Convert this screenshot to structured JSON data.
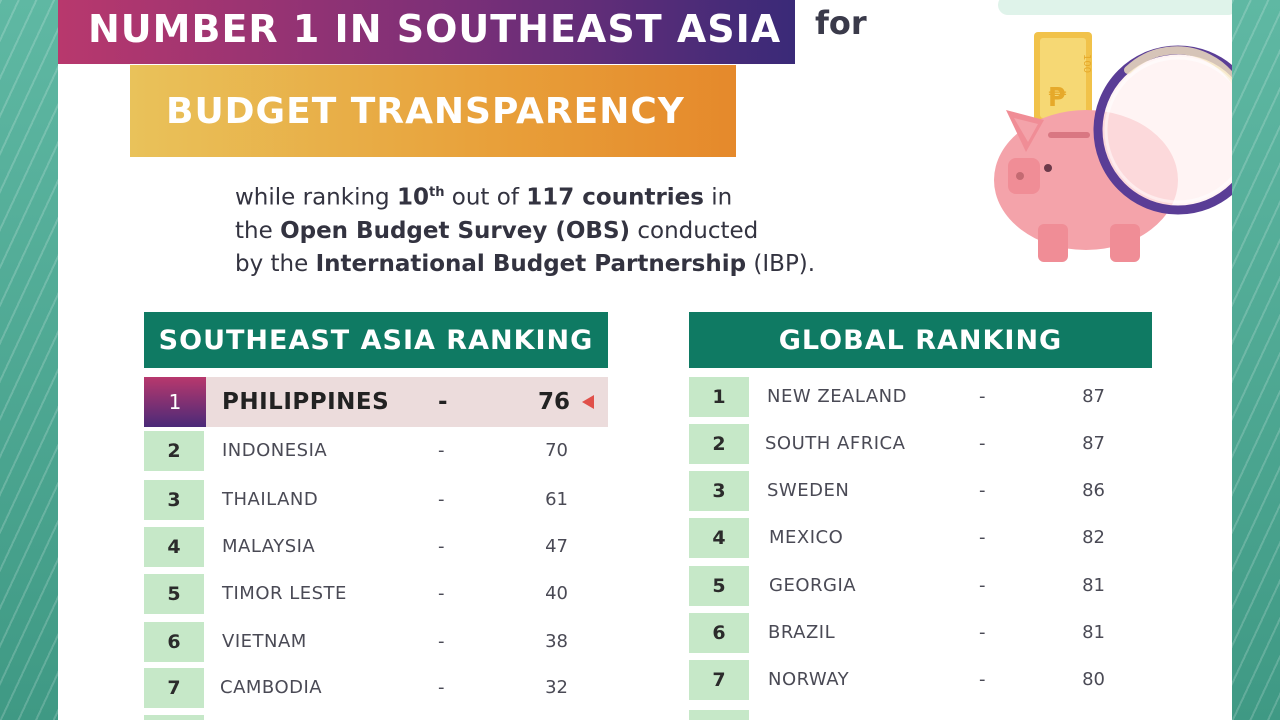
{
  "header": {
    "title_line1": "NUMBER 1 IN SOUTHEAST ASIA",
    "for_word": "for",
    "title_line2": "BUDGET TRANSPARENCY"
  },
  "description": {
    "p1": "while ranking ",
    "rank": "10",
    "rank_suffix": "th",
    "p2": " out of ",
    "countries": "117 countries",
    "p3": " in",
    "p4": "the ",
    "survey": "Open Budget Survey (OBS)",
    "p5": " conducted",
    "p6": "by the ",
    "org": "International Budget Partnership",
    "p7": " (IBP)."
  },
  "illustration": {
    "banknote_symbol": "₱",
    "banknote_value": "100",
    "icons": [
      "piggy-bank-icon",
      "magnifying-glass-icon",
      "banknote-icon"
    ]
  },
  "southeast_asia": {
    "title": "SOUTHEAST ASIA RANKING",
    "highlight": {
      "rank": "1",
      "country": "PHILIPPINES",
      "dash": "-",
      "score": "76"
    },
    "rows": [
      {
        "rank": "2",
        "country": "INDONESIA",
        "dash": "-",
        "score": "70"
      },
      {
        "rank": "3",
        "country": "THAILAND",
        "dash": "-",
        "score": "61"
      },
      {
        "rank": "4",
        "country": "MALAYSIA",
        "dash": "-",
        "score": "47"
      },
      {
        "rank": "5",
        "country": "TIMOR LESTE",
        "dash": "-",
        "score": "40"
      },
      {
        "rank": "6",
        "country": "VIETNAM",
        "dash": "-",
        "score": "38"
      },
      {
        "rank": "7",
        "country": "CAMBODIA",
        "dash": "-",
        "score": "32"
      }
    ]
  },
  "global": {
    "title": "GLOBAL RANKING",
    "rows": [
      {
        "rank": "1",
        "country": "NEW ZEALAND",
        "dash": "-",
        "score": "87"
      },
      {
        "rank": "2",
        "country": "SOUTH AFRICA",
        "dash": "-",
        "score": "87"
      },
      {
        "rank": "3",
        "country": "SWEDEN",
        "dash": "-",
        "score": "86"
      },
      {
        "rank": "4",
        "country": "MEXICO",
        "dash": "-",
        "score": "82"
      },
      {
        "rank": "5",
        "country": "GEORGIA",
        "dash": "-",
        "score": "81"
      },
      {
        "rank": "6",
        "country": "BRAZIL",
        "dash": "-",
        "score": "81"
      },
      {
        "rank": "7",
        "country": "NORWAY",
        "dash": "-",
        "score": "80"
      }
    ]
  },
  "colors": {
    "table_header": "#0f7a63",
    "rank_box": "#c6e8c8",
    "highlight_row": "#ecdcdc",
    "arrow": "#e0504a",
    "background": "#4faa96"
  }
}
